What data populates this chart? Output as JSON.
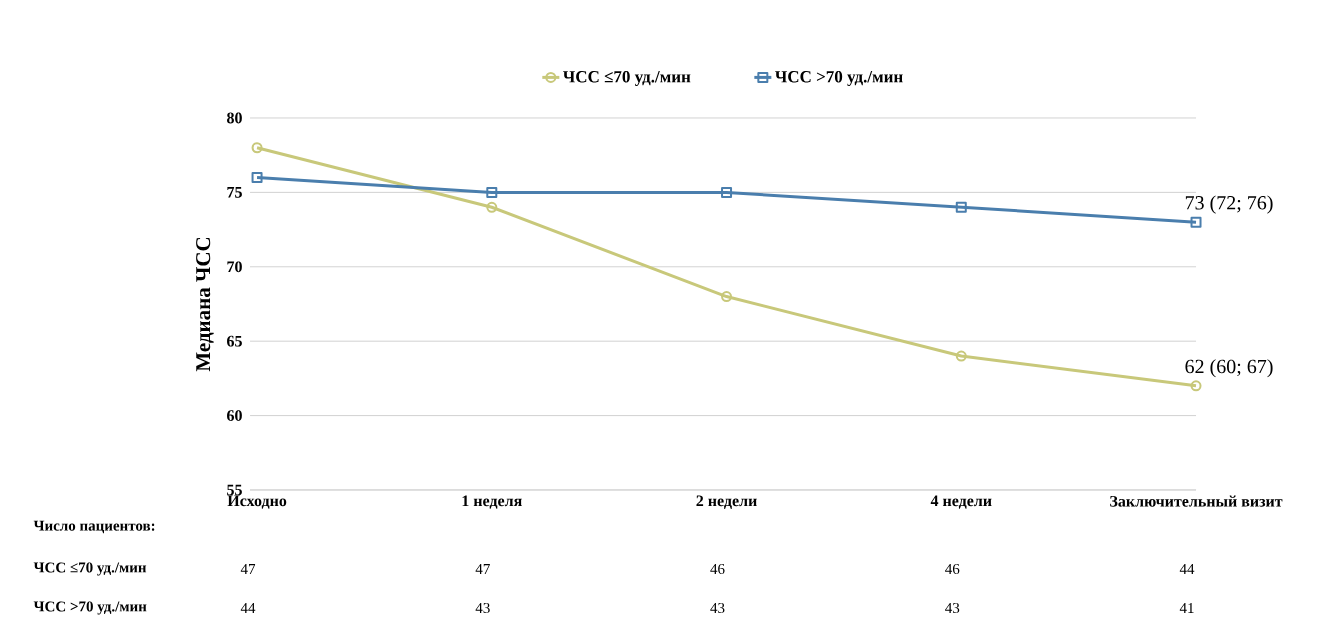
{
  "chart_data": {
    "type": "line",
    "ylabel": "Медиана ЧСС",
    "categories": [
      "Исходно",
      "1 неделя",
      "2 недели",
      "4 недели",
      "Заключительный визит"
    ],
    "series": [
      {
        "name": "ЧСС ≤70 уд./мин",
        "color": "#c8c87a",
        "marker": "circle",
        "values": [
          78,
          74,
          68,
          64,
          62
        ]
      },
      {
        "name": "ЧСС >70 уд./мин",
        "color": "#4a7ead",
        "marker": "square",
        "values": [
          76,
          75,
          75,
          74,
          73
        ]
      }
    ],
    "ylim": [
      55,
      80
    ],
    "yticks": [
      55,
      60,
      65,
      70,
      75,
      80
    ],
    "grid": "y",
    "legend": "top",
    "annotations": [
      {
        "text": "73 (72; 76)",
        "x": "Заключительный визит",
        "y": 73
      },
      {
        "text": "62 (60; 67)",
        "x": "Заключительный визит",
        "y": 62
      },
      "Число пациентов:",
      "ЧСС ≤70 уд./мин",
      "47",
      "47",
      "46",
      "46",
      "44",
      "ЧСС >70 уд./мин",
      "44",
      "43",
      "43",
      "43",
      "41"
    ]
  }
}
